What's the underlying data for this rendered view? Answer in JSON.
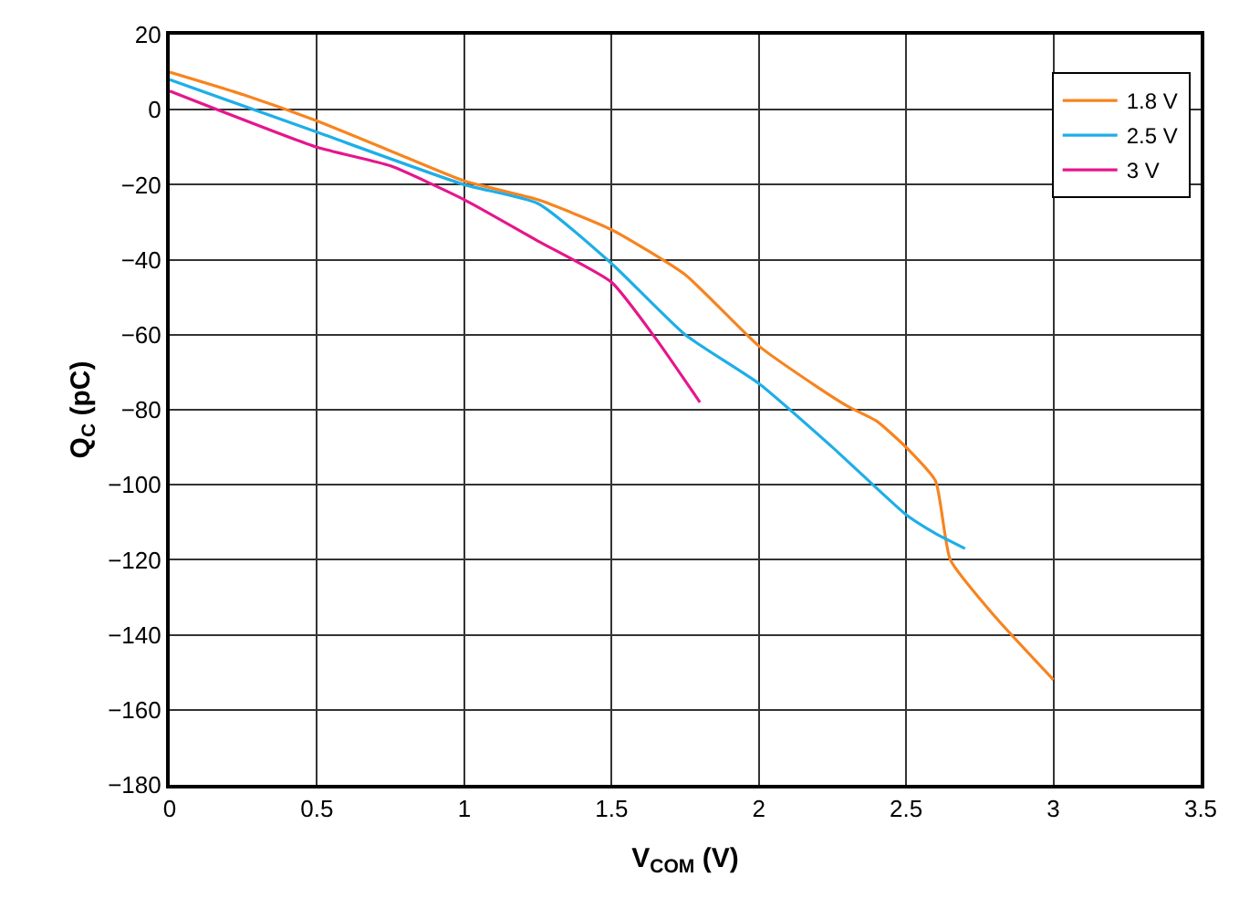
{
  "chart_data": {
    "type": "line",
    "xlabel": "V$_{COM}$ (V)",
    "ylabel": "Q$_{C}$ (pC)",
    "xlim": [
      0,
      3.5
    ],
    "xticks": [
      0,
      0.5,
      1,
      1.5,
      2,
      2.5,
      3,
      3.5
    ],
    "ylim": [
      -180,
      20
    ],
    "yticks": [
      -180,
      -160,
      -140,
      -120,
      -100,
      -80,
      -60,
      -40,
      -20,
      0,
      20
    ],
    "grid": true,
    "legend": "top right",
    "series": [
      {
        "name": "1.8 V",
        "color": "#f7841f",
        "x": [
          0,
          0.25,
          0.5,
          0.75,
          1,
          1.25,
          1.5,
          1.75,
          2,
          2.2,
          2.3,
          2.4,
          2.5,
          2.6,
          2.65,
          2.8,
          3
        ],
        "values": [
          10,
          4,
          -3,
          -11,
          -19,
          -24,
          -32,
          -44,
          -63,
          -74,
          -79,
          -83,
          -90,
          -99,
          -120,
          -135,
          -152
        ]
      },
      {
        "name": "2.5 V",
        "color": "#1eaee8",
        "x": [
          0,
          0.5,
          1,
          1.25,
          1.5,
          1.75,
          2,
          2.25,
          2.5,
          2.6,
          2.7
        ],
        "values": [
          8,
          -6,
          -20,
          -25,
          -41,
          -60,
          -73,
          -90,
          -108,
          -113,
          -117
        ]
      },
      {
        "name": "3 V",
        "color": "#e5168c",
        "x": [
          0,
          0.5,
          0.75,
          1,
          1.25,
          1.5,
          1.65,
          1.8
        ],
        "values": [
          5,
          -10,
          -15,
          -24,
          -35,
          -46,
          -61,
          -78
        ]
      }
    ]
  }
}
